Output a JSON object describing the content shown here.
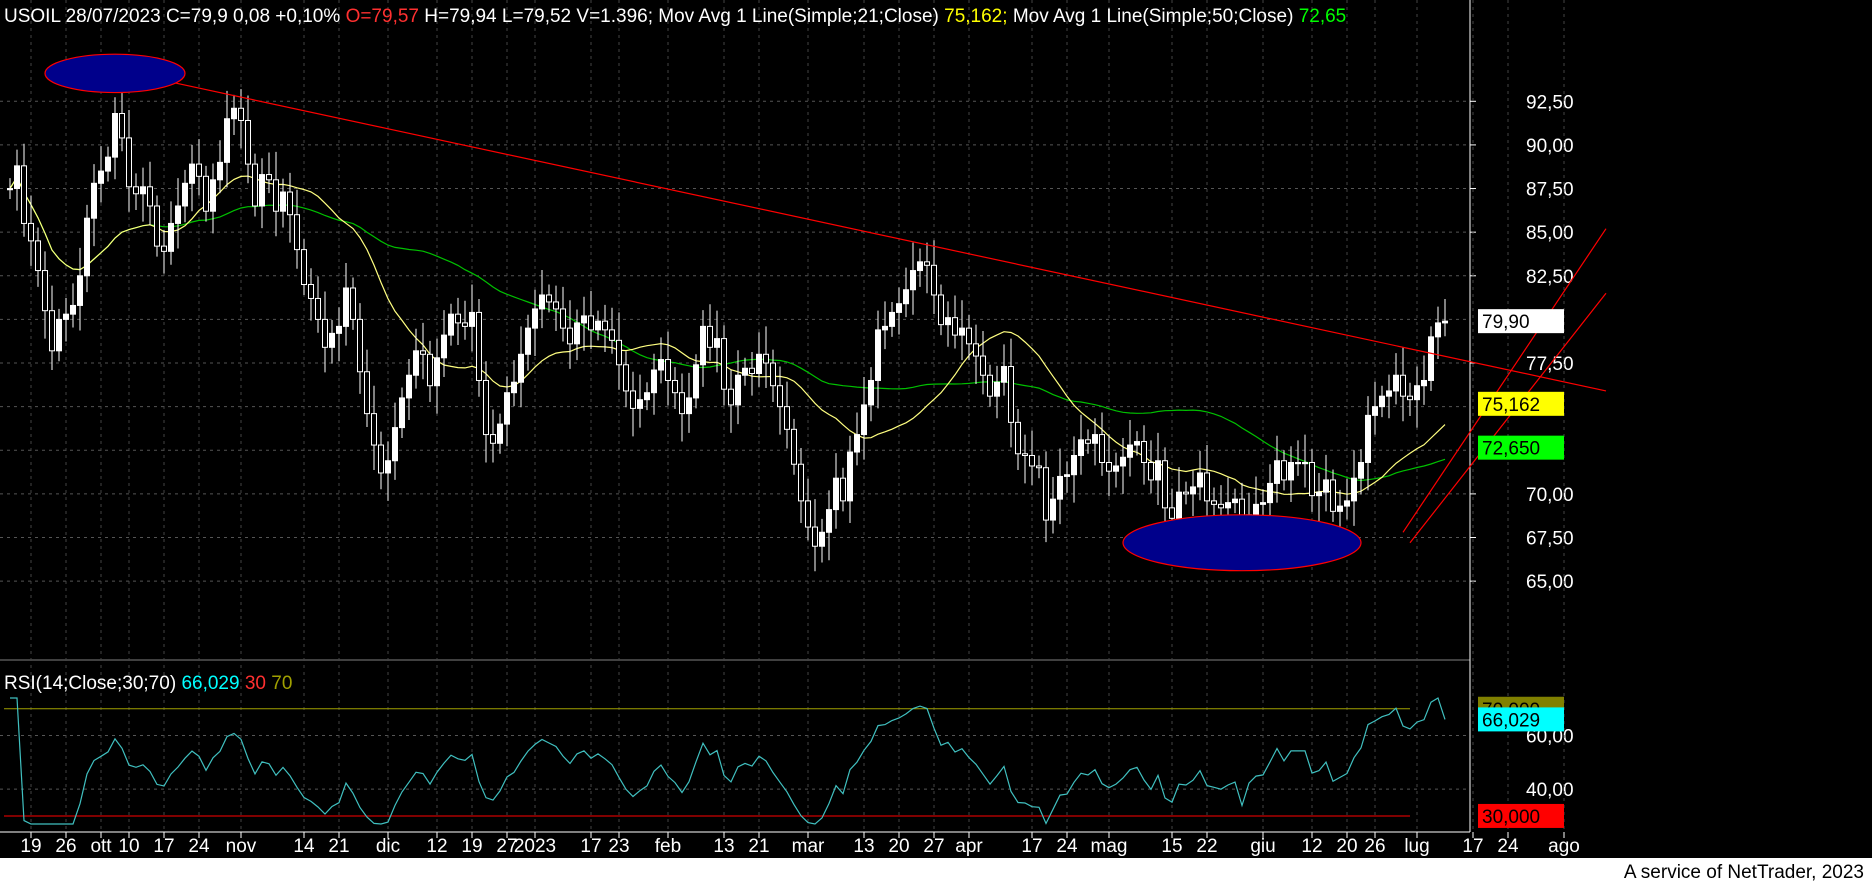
{
  "header": {
    "symbol_info": "USOIL 28/07/2023 C=79,9 0,08 +0,10%",
    "open": "O=79,57",
    "hlv": "H=79,94 L=79,52 V=1.396;",
    "ma21_label": "Mov Avg 1 Line(Simple;21;Close)",
    "ma21_value": "75,162;",
    "ma50_label": "Mov Avg 1 Line(Simple;50;Close)",
    "ma50_value": "72,65"
  },
  "rsi_header": {
    "label": "RSI(14;Close;30;70)",
    "value": "66,029",
    "low": "30",
    "high": "70"
  },
  "footer": "A service of NetTrader, 2023",
  "price_axis": {
    "ticks": [
      "92,50",
      "90,00",
      "87,50",
      "85,00",
      "82,50",
      "77,50",
      "70,00",
      "67,50",
      "65,00"
    ],
    "tick_values": [
      92.5,
      90,
      87.5,
      85,
      82.5,
      77.5,
      70,
      67.5,
      65
    ],
    "range": [
      62.2,
      96.7
    ],
    "badges": [
      {
        "label": "79,90",
        "value": 79.9,
        "bg": "#ffffff",
        "fg": "#000000"
      },
      {
        "label": "75,162",
        "value": 75.162,
        "bg": "#ffff00",
        "fg": "#000000"
      },
      {
        "label": "72,650",
        "value": 72.65,
        "bg": "#00ff00",
        "fg": "#000000"
      }
    ]
  },
  "rsi_axis": {
    "ticks": [
      "60,00",
      "40,00"
    ],
    "tick_values": [
      60,
      40
    ],
    "range": [
      25.5,
      77
    ],
    "badges": [
      {
        "label": "70,000",
        "value": 70,
        "bg": "#808000",
        "fg": "#000000"
      },
      {
        "label": "66,029",
        "value": 66.029,
        "bg": "#00ffff",
        "fg": "#000000"
      },
      {
        "label": "30,000",
        "value": 30,
        "bg": "#ff0000",
        "fg": "#000000"
      }
    ]
  },
  "time_axis": [
    {
      "label": "19",
      "i": 3
    },
    {
      "label": "26",
      "i": 8
    },
    {
      "label": "ott",
      "i": 13
    },
    {
      "label": "10",
      "i": 17
    },
    {
      "label": "17",
      "i": 22
    },
    {
      "label": "24",
      "i": 27
    },
    {
      "label": "nov",
      "i": 33
    },
    {
      "label": "14",
      "i": 42
    },
    {
      "label": "21",
      "i": 47
    },
    {
      "label": "dic",
      "i": 54
    },
    {
      "label": "12",
      "i": 61
    },
    {
      "label": "19",
      "i": 66
    },
    {
      "label": "27",
      "i": 71
    },
    {
      "label": "2023",
      "i": 75
    },
    {
      "label": "17",
      "i": 83
    },
    {
      "label": "23",
      "i": 87
    },
    {
      "label": "feb",
      "i": 94
    },
    {
      "label": "13",
      "i": 102
    },
    {
      "label": "21",
      "i": 107
    },
    {
      "label": "mar",
      "i": 114
    },
    {
      "label": "13",
      "i": 122
    },
    {
      "label": "20",
      "i": 127
    },
    {
      "label": "27",
      "i": 132
    },
    {
      "label": "apr",
      "i": 137
    },
    {
      "label": "17",
      "i": 146
    },
    {
      "label": "24",
      "i": 151
    },
    {
      "label": "mag",
      "i": 157
    },
    {
      "label": "15",
      "i": 166
    },
    {
      "label": "22",
      "i": 171
    },
    {
      "label": "giu",
      "i": 179
    },
    {
      "label": "12",
      "i": 186
    },
    {
      "label": "20",
      "i": 191
    },
    {
      "label": "26",
      "i": 195
    },
    {
      "label": "lug",
      "i": 201
    },
    {
      "label": "17",
      "i": 209
    },
    {
      "label": "24",
      "i": 214
    },
    {
      "label": "ago",
      "i": 222
    }
  ],
  "chart_data": [
    {
      "type": "candlestick",
      "title": "USOIL 28/07/2023",
      "x_start": "2022-09-12",
      "x_end": "2023-07-28",
      "approx_ohlc_path": {
        "note_values": "closing path sampled from chart",
        "closes": [
          87.5,
          88.8,
          85.5,
          84.5,
          82.8,
          80.5,
          78.2,
          80.0,
          80.3,
          80.8,
          82.5,
          85.8,
          87.8,
          88.5,
          89.3,
          91.8,
          90.4,
          87.6,
          87.2,
          87.6,
          86.5,
          84.2,
          83.9,
          85.5,
          86.5,
          87.8,
          88.9,
          88.2,
          86.2,
          88.0,
          89.0,
          91.5,
          92.1,
          91.4,
          88.9,
          86.5,
          88.3,
          88.0,
          86.2,
          87.3,
          86.0,
          84.0,
          82.0,
          81.2,
          80.0,
          78.4,
          79.2,
          79.6,
          81.8,
          80.0,
          77.0,
          74.6,
          72.8,
          71.2,
          71.9,
          73.8,
          75.5,
          76.8,
          78.2,
          78.0,
          76.2,
          77.8,
          79.1,
          80.3,
          79.8,
          79.6,
          80.4,
          76.5,
          73.4,
          72.9,
          74.0,
          75.8,
          76.4,
          78.0,
          79.5,
          80.6,
          81.4,
          81.0,
          80.6,
          79.5,
          78.6,
          79.8,
          80.2,
          79.4,
          79.9,
          79.4,
          78.8,
          77.4,
          75.9,
          74.9,
          75.4,
          75.8,
          77.1,
          77.7,
          76.5,
          75.8,
          74.6,
          75.5,
          77.4,
          79.6,
          78.4,
          78.9,
          76.0,
          75.1,
          76.8,
          77.2,
          76.9,
          78.0,
          77.5,
          76.2,
          75.0,
          73.7,
          71.7,
          69.6,
          68.1,
          67.0,
          67.8,
          69.1,
          70.9,
          69.6,
          72.4,
          73.4,
          75.1,
          76.5,
          79.4,
          79.6,
          80.4,
          80.9,
          81.7,
          82.8,
          83.3,
          83.1,
          81.4,
          79.7,
          80.1,
          79.1,
          79.5,
          78.6,
          77.9,
          76.8,
          75.6,
          76.4,
          77.3,
          74.1,
          72.3,
          72.2,
          71.6,
          71.5,
          68.5,
          69.7,
          71.0,
          71.1,
          72.2,
          73.1,
          72.9,
          73.4,
          71.8,
          71.3,
          71.6,
          72.1,
          72.8,
          73.0,
          71.8,
          70.8,
          71.9,
          69.2,
          68.6,
          70.1,
          70.0,
          70.4,
          71.2,
          69.6,
          69.4,
          69.2,
          69.5,
          69.7,
          67.1,
          68.8,
          69.4,
          69.5,
          70.6,
          71.9,
          70.8,
          71.8,
          71.8,
          71.8,
          69.9,
          70.1,
          70.8,
          69.0,
          69.3,
          69.6,
          70.9,
          71.8,
          74.5,
          75.0,
          75.6,
          75.9,
          76.8,
          75.6,
          75.4,
          76.2,
          76.5,
          79.0,
          79.8,
          79.9
        ],
        "final_close": 79.9,
        "high_visible": 93.7,
        "low_visible": 64.0
      },
      "series": [
        {
          "name": "Mov Avg 1 Line(Simple;21;Close)",
          "last": 75.162,
          "color": "#ffff80"
        },
        {
          "name": "Mov Avg 1 Line(Simple;50;Close)",
          "last": 72.65,
          "color": "#00c000"
        }
      ],
      "annotations": [
        {
          "type": "trendline",
          "color": "#ff0000",
          "from": {
            "i": 23,
            "y": 93.6
          },
          "to": {
            "i": 228,
            "y": 75.9
          }
        },
        {
          "type": "channel",
          "color": "#ff0000",
          "from": {
            "i": 199,
            "y": 67.8
          },
          "to": {
            "i": 228,
            "y": 85.2
          }
        },
        {
          "type": "channel",
          "color": "#ff0000",
          "from": {
            "i": 200,
            "y": 67.2
          },
          "to": {
            "i": 228,
            "y": 81.5
          }
        },
        {
          "type": "ellipse",
          "fill": "#00008b",
          "stroke": "#ff0000",
          "center": {
            "i": 15,
            "y": 94.1
          },
          "rx_bars": 10,
          "ry_value": 1.1
        },
        {
          "type": "ellipse",
          "fill": "#00008b",
          "stroke": "#ff0000",
          "center": {
            "i": 176,
            "y": 67.2
          },
          "rx_bars": 17,
          "ry_value": 1.6
        }
      ],
      "ylim": [
        62.2,
        96.7
      ]
    },
    {
      "type": "line",
      "title": "RSI(14;Close;30;70)",
      "series": [
        {
          "name": "RSI(14;Close;30;70)",
          "last": 66.029,
          "color": "#40c0c0"
        }
      ],
      "levels": {
        "overbought": 70,
        "oversold": 30
      },
      "ylim": [
        25.5,
        77
      ]
    }
  ]
}
